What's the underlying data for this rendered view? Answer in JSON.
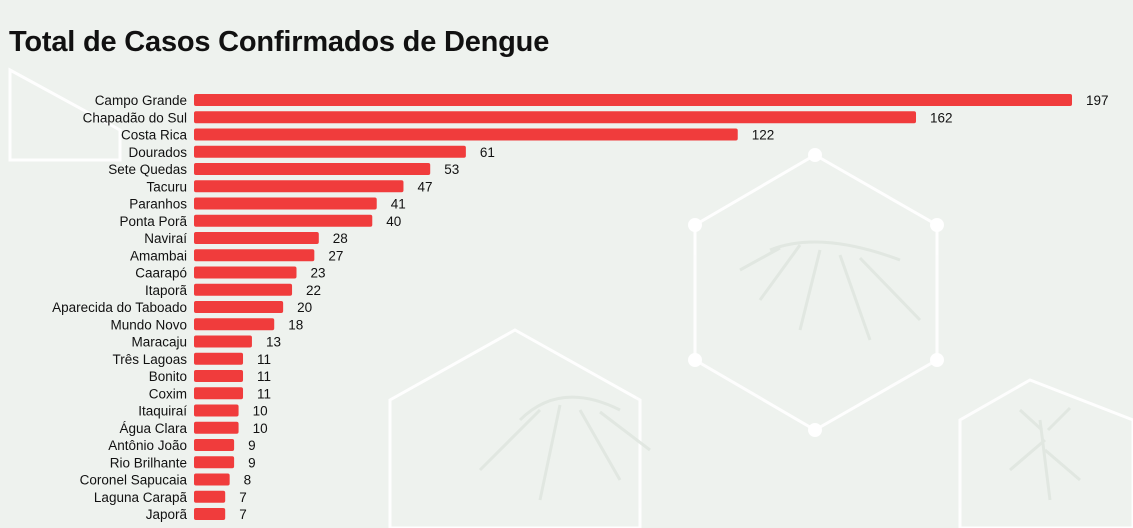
{
  "chart_data": {
    "type": "bar",
    "orientation": "horizontal",
    "title": "Total de Casos Confirmados de Dengue",
    "xlabel": "",
    "ylabel": "",
    "bar_color": "#f03c3c",
    "categories": [
      "Campo Grande",
      "Chapadão do Sul",
      "Costa Rica",
      "Dourados",
      "Sete Quedas",
      "Tacuru",
      "Paranhos",
      "Ponta Porã",
      "Naviraí",
      "Amambai",
      "Caarapó",
      "Itaporã",
      "Aparecida do Taboado",
      "Mundo Novo",
      "Maracaju",
      "Três Lagoas",
      "Bonito",
      "Coxim",
      "Itaquiraí",
      "Água Clara",
      "Antônio João",
      "Rio Brilhante",
      "Coronel Sapucaia",
      "Laguna Carapã",
      "Japorã"
    ],
    "values": [
      197,
      162,
      122,
      61,
      53,
      47,
      41,
      40,
      28,
      27,
      23,
      22,
      20,
      18,
      13,
      11,
      11,
      11,
      10,
      10,
      9,
      9,
      8,
      7,
      7
    ],
    "xlim": [
      0,
      197
    ],
    "grid": false,
    "legend": "none",
    "data_labels": true
  }
}
